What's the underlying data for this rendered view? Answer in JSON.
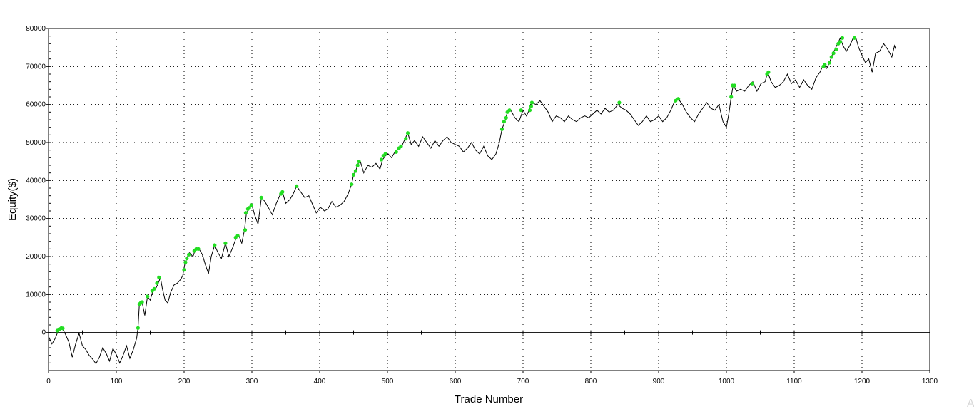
{
  "chart_data": {
    "type": "line",
    "title": "",
    "xlabel": "Trade Number",
    "ylabel": "Equity($)",
    "xlim": [
      0,
      1300
    ],
    "ylim": [
      -10000,
      80000
    ],
    "x_ticks": [
      0,
      100,
      200,
      300,
      400,
      500,
      600,
      700,
      800,
      900,
      1000,
      1100,
      1200,
      1300
    ],
    "y_ticks": [
      0,
      10000,
      20000,
      30000,
      40000,
      50000,
      60000,
      70000,
      80000
    ],
    "grid": true,
    "line_color": "#000000",
    "marker_color": "#22dd22",
    "series": [
      {
        "values_xy": [
          [
            0,
            -1000
          ],
          [
            5,
            -3000
          ],
          [
            10,
            -1500
          ],
          [
            15,
            800
          ],
          [
            20,
            1200
          ],
          [
            25,
            -500
          ],
          [
            30,
            -2500
          ],
          [
            35,
            -6500
          ],
          [
            40,
            -3000
          ],
          [
            45,
            -200
          ],
          [
            50,
            -3500
          ],
          [
            55,
            -4500
          ],
          [
            60,
            -6000
          ],
          [
            65,
            -7000
          ],
          [
            70,
            -8200
          ],
          [
            75,
            -6500
          ],
          [
            80,
            -4000
          ],
          [
            85,
            -5500
          ],
          [
            90,
            -7500
          ],
          [
            95,
            -4200
          ],
          [
            100,
            -5800
          ],
          [
            105,
            -8000
          ],
          [
            110,
            -6000
          ],
          [
            115,
            -3500
          ],
          [
            120,
            -6800
          ],
          [
            125,
            -4500
          ],
          [
            130,
            -1500
          ],
          [
            132,
            1200
          ],
          [
            134,
            7500
          ],
          [
            138,
            8000
          ],
          [
            142,
            4500
          ],
          [
            146,
            9500
          ],
          [
            150,
            8500
          ],
          [
            154,
            11000
          ],
          [
            158,
            11500
          ],
          [
            162,
            13000
          ],
          [
            165,
            14500
          ],
          [
            168,
            11500
          ],
          [
            172,
            8500
          ],
          [
            176,
            7800
          ],
          [
            180,
            10500
          ],
          [
            185,
            12500
          ],
          [
            190,
            13000
          ],
          [
            195,
            14000
          ],
          [
            198,
            15000
          ],
          [
            201,
            18000
          ],
          [
            205,
            20000
          ],
          [
            208,
            21000
          ],
          [
            213,
            20000
          ],
          [
            217,
            22000
          ],
          [
            222,
            22000
          ],
          [
            227,
            20500
          ],
          [
            232,
            17500
          ],
          [
            236,
            15500
          ],
          [
            240,
            20000
          ],
          [
            245,
            23000
          ],
          [
            250,
            21000
          ],
          [
            255,
            19500
          ],
          [
            261,
            23500
          ],
          [
            266,
            20000
          ],
          [
            272,
            22500
          ],
          [
            277,
            25000
          ],
          [
            281,
            25500
          ],
          [
            285,
            23500
          ],
          [
            289,
            27000
          ],
          [
            292,
            31500
          ],
          [
            296,
            32500
          ],
          [
            300,
            33500
          ],
          [
            304,
            31000
          ],
          [
            309,
            28500
          ],
          [
            314,
            35500
          ],
          [
            319,
            34500
          ],
          [
            324,
            33000
          ],
          [
            330,
            31000
          ],
          [
            336,
            34000
          ],
          [
            341,
            36000
          ],
          [
            345,
            37000
          ],
          [
            350,
            34000
          ],
          [
            356,
            35000
          ],
          [
            361,
            36500
          ],
          [
            366,
            38500
          ],
          [
            372,
            37000
          ],
          [
            378,
            35500
          ],
          [
            384,
            36000
          ],
          [
            390,
            33500
          ],
          [
            395,
            31500
          ],
          [
            401,
            33000
          ],
          [
            407,
            32000
          ],
          [
            412,
            32500
          ],
          [
            418,
            34500
          ],
          [
            424,
            33000
          ],
          [
            430,
            33500
          ],
          [
            436,
            34500
          ],
          [
            442,
            36500
          ],
          [
            447,
            39000
          ],
          [
            450,
            41500
          ],
          [
            453,
            42500
          ],
          [
            457,
            44500
          ],
          [
            460,
            45000
          ],
          [
            465,
            42000
          ],
          [
            471,
            44000
          ],
          [
            477,
            43500
          ],
          [
            483,
            44500
          ],
          [
            489,
            43000
          ],
          [
            493,
            45500
          ],
          [
            497,
            46500
          ],
          [
            501,
            47000
          ],
          [
            506,
            46000
          ],
          [
            511,
            47500
          ],
          [
            516,
            48500
          ],
          [
            521,
            49000
          ],
          [
            526,
            51000
          ],
          [
            530,
            52500
          ],
          [
            535,
            49500
          ],
          [
            540,
            50500
          ],
          [
            546,
            49000
          ],
          [
            552,
            51500
          ],
          [
            558,
            50000
          ],
          [
            564,
            48500
          ],
          [
            570,
            50500
          ],
          [
            576,
            49000
          ],
          [
            582,
            50500
          ],
          [
            588,
            51500
          ],
          [
            594,
            50000
          ],
          [
            600,
            49500
          ],
          [
            606,
            49000
          ],
          [
            612,
            47500
          ],
          [
            618,
            48500
          ],
          [
            624,
            50000
          ],
          [
            630,
            48000
          ],
          [
            636,
            47000
          ],
          [
            642,
            49000
          ],
          [
            648,
            46500
          ],
          [
            654,
            45500
          ],
          [
            660,
            47000
          ],
          [
            665,
            50000
          ],
          [
            669,
            53500
          ],
          [
            673,
            55500
          ],
          [
            677,
            58000
          ],
          [
            682,
            58500
          ],
          [
            688,
            56500
          ],
          [
            694,
            55500
          ],
          [
            700,
            58500
          ],
          [
            705,
            57000
          ],
          [
            709,
            58500
          ],
          [
            713,
            60500
          ],
          [
            719,
            60000
          ],
          [
            725,
            61000
          ],
          [
            731,
            59500
          ],
          [
            737,
            58000
          ],
          [
            743,
            55500
          ],
          [
            749,
            57000
          ],
          [
            755,
            56500
          ],
          [
            761,
            55500
          ],
          [
            767,
            57000
          ],
          [
            773,
            56000
          ],
          [
            779,
            55500
          ],
          [
            785,
            56500
          ],
          [
            791,
            57000
          ],
          [
            797,
            56500
          ],
          [
            803,
            57500
          ],
          [
            809,
            58500
          ],
          [
            815,
            57500
          ],
          [
            821,
            59000
          ],
          [
            827,
            58000
          ],
          [
            833,
            58500
          ],
          [
            840,
            60000
          ],
          [
            846,
            59000
          ],
          [
            852,
            58500
          ],
          [
            858,
            57500
          ],
          [
            864,
            56000
          ],
          [
            870,
            54500
          ],
          [
            876,
            55500
          ],
          [
            882,
            57000
          ],
          [
            888,
            55500
          ],
          [
            894,
            56000
          ],
          [
            900,
            57000
          ],
          [
            906,
            55500
          ],
          [
            912,
            56500
          ],
          [
            918,
            58500
          ],
          [
            924,
            61000
          ],
          [
            929,
            61500
          ],
          [
            935,
            60000
          ],
          [
            941,
            58000
          ],
          [
            947,
            56500
          ],
          [
            953,
            55500
          ],
          [
            959,
            57500
          ],
          [
            965,
            59000
          ],
          [
            971,
            60500
          ],
          [
            977,
            59000
          ],
          [
            983,
            58500
          ],
          [
            989,
            60000
          ],
          [
            995,
            55500
          ],
          [
            1000,
            54000
          ],
          [
            1004,
            58000
          ],
          [
            1007,
            62000
          ],
          [
            1010,
            65000
          ],
          [
            1015,
            63500
          ],
          [
            1021,
            64000
          ],
          [
            1027,
            63500
          ],
          [
            1033,
            65000
          ],
          [
            1039,
            66000
          ],
          [
            1045,
            63500
          ],
          [
            1051,
            65500
          ],
          [
            1057,
            66000
          ],
          [
            1061,
            68500
          ],
          [
            1066,
            66000
          ],
          [
            1072,
            64500
          ],
          [
            1078,
            65000
          ],
          [
            1084,
            66000
          ],
          [
            1090,
            68000
          ],
          [
            1096,
            65500
          ],
          [
            1102,
            66500
          ],
          [
            1108,
            64500
          ],
          [
            1114,
            66500
          ],
          [
            1120,
            65000
          ],
          [
            1126,
            64000
          ],
          [
            1132,
            67000
          ],
          [
            1138,
            68500
          ],
          [
            1143,
            70500
          ],
          [
            1148,
            69500
          ],
          [
            1152,
            71000
          ],
          [
            1156,
            73000
          ],
          [
            1160,
            74500
          ],
          [
            1164,
            76000
          ],
          [
            1168,
            77500
          ],
          [
            1172,
            75500
          ],
          [
            1177,
            74000
          ],
          [
            1182,
            75500
          ],
          [
            1187,
            77500
          ],
          [
            1191,
            77500
          ],
          [
            1195,
            75000
          ],
          [
            1200,
            73000
          ],
          [
            1205,
            71000
          ],
          [
            1210,
            72000
          ],
          [
            1215,
            68500
          ],
          [
            1220,
            73500
          ],
          [
            1226,
            74000
          ],
          [
            1232,
            76000
          ],
          [
            1238,
            74500
          ],
          [
            1244,
            72500
          ],
          [
            1248,
            75500
          ],
          [
            1250,
            74500
          ]
        ],
        "markers_xy": [
          [
            13,
            500
          ],
          [
            16,
            900
          ],
          [
            19,
            1200
          ],
          [
            21,
            1100
          ],
          [
            132,
            1200
          ],
          [
            134,
            7500
          ],
          [
            136,
            7800
          ],
          [
            138,
            8000
          ],
          [
            146,
            9500
          ],
          [
            153,
            11000
          ],
          [
            156,
            11500
          ],
          [
            160,
            13000
          ],
          [
            163,
            14500
          ],
          [
            200,
            16500
          ],
          [
            202,
            18500
          ],
          [
            204,
            19500
          ],
          [
            207,
            20500
          ],
          [
            215,
            21500
          ],
          [
            218,
            22000
          ],
          [
            221,
            22000
          ],
          [
            245,
            23000
          ],
          [
            261,
            23500
          ],
          [
            276,
            25000
          ],
          [
            279,
            25500
          ],
          [
            290,
            27000
          ],
          [
            291,
            31500
          ],
          [
            294,
            32500
          ],
          [
            296,
            32800
          ],
          [
            299,
            33500
          ],
          [
            314,
            35500
          ],
          [
            343,
            36500
          ],
          [
            345,
            37000
          ],
          [
            366,
            38500
          ],
          [
            447,
            39000
          ],
          [
            450,
            41500
          ],
          [
            453,
            42500
          ],
          [
            456,
            44000
          ],
          [
            458,
            45000
          ],
          [
            491,
            45500
          ],
          [
            494,
            46500
          ],
          [
            497,
            47000
          ],
          [
            513,
            47500
          ],
          [
            517,
            48500
          ],
          [
            520,
            49000
          ],
          [
            527,
            51000
          ],
          [
            530,
            52500
          ],
          [
            669,
            53500
          ],
          [
            672,
            55500
          ],
          [
            675,
            56500
          ],
          [
            677,
            58000
          ],
          [
            680,
            58500
          ],
          [
            697,
            58500
          ],
          [
            710,
            58500
          ],
          [
            712,
            59500
          ],
          [
            713,
            60500
          ],
          [
            842,
            60500
          ],
          [
            925,
            61000
          ],
          [
            929,
            61500
          ],
          [
            1007,
            62000
          ],
          [
            1009,
            65000
          ],
          [
            1012,
            65000
          ],
          [
            1038,
            65500
          ],
          [
            1060,
            68000
          ],
          [
            1062,
            68500
          ],
          [
            1143,
            70000
          ],
          [
            1145,
            70500
          ],
          [
            1152,
            71000
          ],
          [
            1155,
            72500
          ],
          [
            1158,
            73500
          ],
          [
            1162,
            74500
          ],
          [
            1165,
            76000
          ],
          [
            1168,
            76500
          ],
          [
            1171,
            77500
          ],
          [
            1189,
            77500
          ]
        ]
      }
    ]
  }
}
